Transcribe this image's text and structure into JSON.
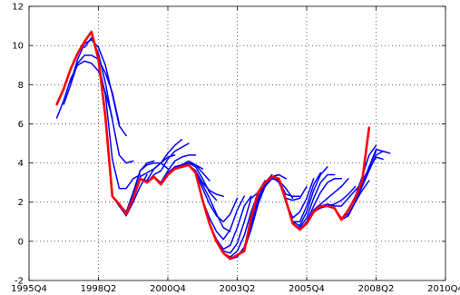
{
  "chart_data": {
    "type": "line",
    "xlim": [
      1995.75,
      2010.75
    ],
    "ylim": [
      -2,
      12
    ],
    "x_ticks": [
      1995.75,
      1998.25,
      2000.75,
      2003.25,
      2005.75,
      2008.25,
      2010.75
    ],
    "x_tick_labels": [
      "1995Q4",
      "1998Q2",
      "2000Q4",
      "2003Q2",
      "2005Q4",
      "2008Q2",
      "2010Q4"
    ],
    "y_ticks": [
      -2,
      0,
      2,
      4,
      6,
      8,
      10,
      12
    ],
    "y_tick_labels": [
      "-2",
      "0",
      "2",
      "4",
      "6",
      "8",
      "10",
      "12"
    ],
    "grid": true,
    "legend": "none",
    "colors": {
      "actual": "#ff0000",
      "forecast": "#0000ff",
      "grid": "#000000"
    },
    "series": [
      {
        "role": "actual",
        "x": [
          1996.75,
          1997.0,
          1997.25,
          1997.5,
          1997.75,
          1998.0,
          1998.25,
          1998.5,
          1998.75,
          1999.0,
          1999.25,
          1999.5,
          1999.75,
          2000.0,
          2000.25,
          2000.5,
          2000.75,
          2001.0,
          2001.25,
          2001.5,
          2001.75,
          2002.0,
          2002.25,
          2002.5,
          2002.75,
          2003.0,
          2003.25,
          2003.5,
          2003.75,
          2004.0,
          2004.25,
          2004.5,
          2004.75,
          2005.0,
          2005.25,
          2005.5,
          2005.75,
          2006.0,
          2006.25,
          2006.5,
          2006.75,
          2007.0,
          2007.25,
          2007.5,
          2007.75,
          2008.0
        ],
        "y": [
          7.0,
          7.8,
          8.8,
          9.6,
          10.2,
          10.7,
          9.3,
          6.4,
          2.3,
          1.9,
          1.4,
          2.2,
          3.2,
          3.0,
          3.3,
          2.9,
          3.4,
          3.7,
          3.8,
          3.9,
          3.5,
          2.1,
          0.9,
          0.0,
          -0.6,
          -0.9,
          -0.7,
          -0.5,
          1.2,
          2.5,
          3.0,
          3.3,
          3.2,
          2.1,
          0.9,
          0.6,
          0.9,
          1.5,
          1.8,
          1.8,
          1.7,
          1.1,
          1.6,
          2.2,
          3.1,
          5.8
        ]
      },
      {
        "role": "forecast",
        "x": [
          1996.75,
          1997.0,
          1997.25,
          1997.5,
          1997.75,
          1998.0,
          1998.25,
          1998.5,
          1998.75
        ],
        "y": [
          6.3,
          7.2,
          8.3,
          9.0,
          9.2,
          9.1,
          8.7,
          7.6,
          6.3
        ]
      },
      {
        "role": "forecast",
        "x": [
          1997.0,
          1997.25,
          1997.5,
          1997.75,
          1998.0,
          1998.25,
          1998.5,
          1998.75,
          1999.0
        ],
        "y": [
          7.0,
          8.0,
          9.1,
          9.5,
          9.5,
          9.3,
          8.6,
          7.6,
          6.0
        ]
      },
      {
        "role": "forecast",
        "x": [
          1997.25,
          1997.5,
          1997.75,
          1998.0,
          1998.25,
          1998.5,
          1998.75,
          1999.0,
          1999.25
        ],
        "y": [
          8.1,
          9.3,
          10.1,
          10.3,
          9.9,
          9.0,
          7.5,
          5.9,
          5.4
        ]
      },
      {
        "role": "forecast",
        "x": [
          1997.75,
          1998.0,
          1998.25,
          1998.5,
          1998.75,
          1999.0,
          1999.25,
          1999.5
        ],
        "y": [
          9.9,
          10.4,
          9.6,
          8.1,
          6.2,
          4.4,
          4.0,
          4.1
        ]
      },
      {
        "role": "forecast",
        "x": [
          1998.25,
          1998.5,
          1998.75,
          1999.0,
          1999.25,
          1999.5,
          1999.75
        ],
        "y": [
          9.1,
          7.5,
          4.2,
          2.7,
          2.7,
          3.2,
          3.4
        ]
      },
      {
        "role": "forecast",
        "x": [
          1998.75,
          1999.0,
          1999.25,
          1999.5,
          1999.75,
          2000.0
        ],
        "y": [
          2.3,
          1.8,
          1.3,
          2.0,
          2.8,
          3.4
        ]
      },
      {
        "role": "forecast",
        "x": [
          1999.0,
          1999.25,
          1999.5,
          1999.75,
          2000.0,
          2000.25
        ],
        "y": [
          1.9,
          1.5,
          2.5,
          3.6,
          4.0,
          4.1
        ]
      },
      {
        "role": "forecast",
        "x": [
          1999.25,
          1999.5,
          1999.75,
          2000.0,
          2000.25,
          2000.5,
          2000.75
        ],
        "y": [
          1.4,
          2.4,
          3.6,
          3.9,
          4.0,
          4.0,
          3.7
        ]
      },
      {
        "role": "forecast",
        "x": [
          1999.5,
          1999.75,
          2000.0,
          2000.25,
          2000.5,
          2000.75,
          2001.0
        ],
        "y": [
          2.2,
          3.3,
          3.5,
          3.7,
          4.0,
          4.3,
          4.4
        ]
      },
      {
        "role": "forecast",
        "x": [
          1999.75,
          2000.0,
          2000.25,
          2000.5,
          2000.75,
          2001.0,
          2001.25
        ],
        "y": [
          3.2,
          3.1,
          3.7,
          4.0,
          4.5,
          4.9,
          5.2
        ]
      },
      {
        "role": "forecast",
        "x": [
          2000.0,
          2000.25,
          2000.5,
          2000.75,
          2001.0,
          2001.25,
          2001.5
        ],
        "y": [
          3.0,
          3.4,
          3.6,
          4.2,
          4.6,
          4.8,
          5.0
        ]
      },
      {
        "role": "forecast",
        "x": [
          2000.25,
          2000.5,
          2000.75,
          2001.0,
          2001.25,
          2001.5,
          2001.75
        ],
        "y": [
          3.3,
          3.0,
          3.6,
          4.1,
          4.3,
          4.4,
          4.4
        ]
      },
      {
        "role": "forecast",
        "x": [
          2000.5,
          2000.75,
          2001.0,
          2001.25,
          2001.5,
          2001.75,
          2002.0
        ],
        "y": [
          2.9,
          3.5,
          3.8,
          3.9,
          4.0,
          3.9,
          3.7
        ]
      },
      {
        "role": "forecast",
        "x": [
          2000.75,
          2001.0,
          2001.25,
          2001.5,
          2001.75,
          2002.0,
          2002.25
        ],
        "y": [
          3.4,
          3.8,
          3.9,
          4.1,
          3.9,
          3.5,
          3.1
        ]
      },
      {
        "role": "forecast",
        "x": [
          2001.0,
          2001.25,
          2001.5,
          2001.75,
          2002.0,
          2002.25,
          2002.5
        ],
        "y": [
          3.7,
          3.9,
          4.0,
          3.8,
          3.2,
          2.5,
          2.1
        ]
      },
      {
        "role": "forecast",
        "x": [
          2001.25,
          2001.5,
          2001.75,
          2002.0,
          2002.25,
          2002.5,
          2002.75
        ],
        "y": [
          3.8,
          3.9,
          3.6,
          3.0,
          2.6,
          2.4,
          2.3
        ]
      },
      {
        "role": "forecast",
        "x": [
          2001.5,
          2001.75,
          2002.0,
          2002.25,
          2002.5,
          2002.75,
          2003.0
        ],
        "y": [
          3.9,
          3.6,
          2.9,
          2.2,
          1.4,
          0.7,
          0.5
        ]
      },
      {
        "role": "forecast",
        "x": [
          2001.75,
          2002.0,
          2002.25,
          2002.5,
          2002.75,
          2003.0,
          2003.25
        ],
        "y": [
          3.5,
          2.7,
          1.9,
          1.3,
          1.0,
          1.4,
          2.2
        ]
      },
      {
        "role": "forecast",
        "x": [
          2002.0,
          2002.25,
          2002.5,
          2002.75,
          2003.0,
          2003.25,
          2003.5
        ],
        "y": [
          2.1,
          1.2,
          0.5,
          0.1,
          0.6,
          1.6,
          2.3
        ]
      },
      {
        "role": "forecast",
        "x": [
          2002.25,
          2002.5,
          2002.75,
          2003.0,
          2003.25,
          2003.5,
          2003.75
        ],
        "y": [
          0.9,
          0.1,
          -0.4,
          -0.2,
          0.7,
          1.8,
          2.3
        ]
      },
      {
        "role": "forecast",
        "x": [
          2002.5,
          2002.75,
          2003.0,
          2003.25,
          2003.5,
          2003.75,
          2004.0
        ],
        "y": [
          0.0,
          -0.5,
          -0.6,
          -0.1,
          1.0,
          2.2,
          2.5
        ]
      },
      {
        "role": "forecast",
        "x": [
          2002.75,
          2003.0,
          2003.25,
          2003.5,
          2003.75,
          2004.0,
          2004.25
        ],
        "y": [
          -0.6,
          -0.8,
          -0.5,
          0.3,
          1.5,
          2.5,
          3.1
        ]
      },
      {
        "role": "forecast",
        "x": [
          2003.0,
          2003.25,
          2003.5,
          2003.75,
          2004.0,
          2004.25,
          2004.5
        ],
        "y": [
          -0.9,
          -0.8,
          -0.3,
          0.9,
          2.2,
          3.0,
          3.4
        ]
      },
      {
        "role": "forecast",
        "x": [
          2003.25,
          2003.5,
          2003.75,
          2004.0,
          2004.25,
          2004.5,
          2004.75
        ],
        "y": [
          -0.7,
          -0.4,
          0.6,
          1.9,
          2.8,
          3.3,
          3.4
        ]
      },
      {
        "role": "forecast",
        "x": [
          2003.5,
          2003.75,
          2004.0,
          2004.25,
          2004.5,
          2004.75,
          2005.0
        ],
        "y": [
          -0.5,
          0.7,
          2.1,
          2.9,
          3.3,
          3.4,
          3.2
        ]
      },
      {
        "role": "forecast",
        "x": [
          2003.75,
          2004.0,
          2004.25,
          2004.5,
          2004.75,
          2005.0,
          2005.25
        ],
        "y": [
          1.2,
          2.3,
          2.8,
          3.2,
          3.1,
          2.7,
          2.2
        ]
      },
      {
        "role": "forecast",
        "x": [
          2004.0,
          2004.25,
          2004.5,
          2004.75,
          2005.0,
          2005.25,
          2005.5
        ],
        "y": [
          2.5,
          2.9,
          3.2,
          3.1,
          2.4,
          2.3,
          2.3
        ]
      },
      {
        "role": "forecast",
        "x": [
          2004.25,
          2004.5,
          2004.75,
          2005.0,
          2005.25,
          2005.5,
          2005.75
        ],
        "y": [
          3.0,
          3.3,
          3.0,
          2.2,
          2.1,
          2.2,
          2.8
        ]
      },
      {
        "role": "forecast",
        "x": [
          2004.5,
          2004.75,
          2005.0,
          2005.25,
          2005.5,
          2005.75,
          2006.0
        ],
        "y": [
          3.3,
          3.1,
          2.0,
          1.2,
          1.5,
          2.2,
          3.2
        ]
      },
      {
        "role": "forecast",
        "x": [
          2004.75,
          2005.0,
          2005.25,
          2005.5,
          2005.75,
          2006.0,
          2006.25
        ],
        "y": [
          3.2,
          2.0,
          1.0,
          1.0,
          1.8,
          2.9,
          3.5
        ]
      },
      {
        "role": "forecast",
        "x": [
          2005.0,
          2005.25,
          2005.5,
          2005.75,
          2006.0,
          2006.25,
          2006.5
        ],
        "y": [
          2.1,
          1.0,
          0.8,
          1.5,
          2.6,
          3.4,
          3.8
        ]
      },
      {
        "role": "forecast",
        "x": [
          2005.25,
          2005.5,
          2005.75,
          2006.0,
          2006.25,
          2006.5,
          2006.75
        ],
        "y": [
          0.9,
          0.7,
          1.2,
          2.2,
          3.0,
          3.4,
          3.4
        ]
      },
      {
        "role": "forecast",
        "x": [
          2005.5,
          2005.75,
          2006.0,
          2006.25,
          2006.5,
          2006.75,
          2007.0
        ],
        "y": [
          0.6,
          1.0,
          1.8,
          2.5,
          3.0,
          3.2,
          3.2
        ]
      },
      {
        "role": "forecast",
        "x": [
          2005.75,
          2006.0,
          2006.25,
          2006.5,
          2006.75,
          2007.0,
          2007.25
        ],
        "y": [
          0.9,
          1.6,
          1.9,
          2.2,
          2.5,
          2.8,
          3.2
        ]
      },
      {
        "role": "forecast",
        "x": [
          2006.0,
          2006.25,
          2006.5,
          2006.75,
          2007.0,
          2007.25,
          2007.5
        ],
        "y": [
          1.5,
          1.7,
          1.8,
          1.9,
          2.1,
          2.4,
          2.8
        ]
      },
      {
        "role": "forecast",
        "x": [
          2006.25,
          2006.5,
          2006.75,
          2007.0,
          2007.25,
          2007.5,
          2007.75
        ],
        "y": [
          1.8,
          1.9,
          1.8,
          1.8,
          2.2,
          2.6,
          3.0
        ]
      },
      {
        "role": "forecast",
        "x": [
          2006.5,
          2006.75,
          2007.0,
          2007.25,
          2007.5,
          2007.75,
          2008.0
        ],
        "y": [
          1.8,
          1.7,
          1.2,
          1.4,
          2.0,
          2.6,
          3.1
        ]
      },
      {
        "role": "forecast",
        "x": [
          2006.75,
          2007.0,
          2007.25,
          2007.5,
          2007.75,
          2008.0,
          2008.25
        ],
        "y": [
          1.7,
          1.1,
          1.3,
          2.0,
          2.8,
          3.8,
          4.6
        ]
      },
      {
        "role": "forecast",
        "x": [
          2007.0,
          2007.25,
          2007.5,
          2007.75,
          2008.0,
          2008.25
        ],
        "y": [
          1.1,
          1.6,
          2.3,
          3.3,
          4.4,
          4.9
        ]
      },
      {
        "role": "forecast",
        "x": [
          2007.25,
          2007.5,
          2007.75,
          2008.0,
          2008.25,
          2008.5
        ],
        "y": [
          1.6,
          2.3,
          2.9,
          3.8,
          4.7,
          4.6
        ]
      },
      {
        "role": "forecast",
        "x": [
          2007.5,
          2007.75,
          2008.0,
          2008.25,
          2008.5,
          2008.75
        ],
        "y": [
          2.2,
          2.8,
          3.6,
          4.4,
          4.6,
          4.5
        ]
      },
      {
        "role": "forecast",
        "x": [
          2007.75,
          2008.0,
          2008.25,
          2008.5
        ],
        "y": [
          3.1,
          3.7,
          4.3,
          4.2
        ]
      }
    ]
  }
}
